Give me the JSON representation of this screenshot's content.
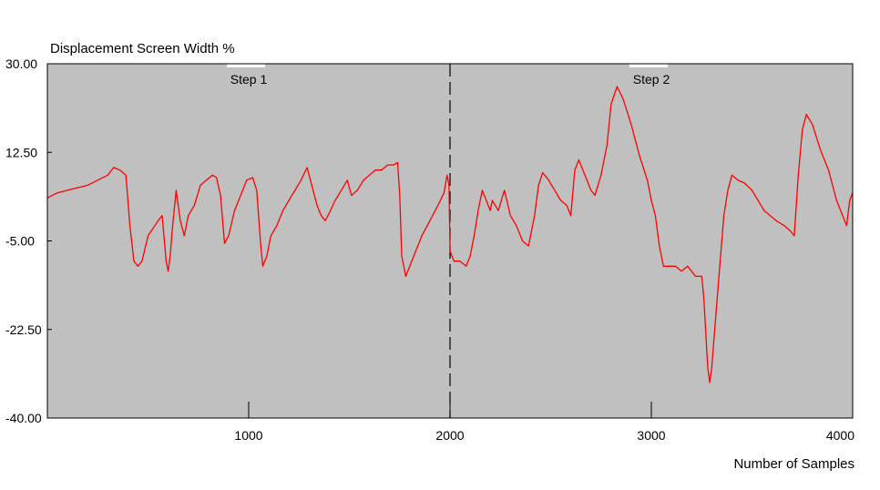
{
  "chart_data": {
    "type": "line",
    "ylabel": "Displacement Screen Width %",
    "xlabel": "Number of Samples",
    "xlim": [
      0,
      4000
    ],
    "ylim": [
      -40,
      30
    ],
    "x_ticks": [
      1000,
      2000,
      3000,
      4000
    ],
    "x_tick_labels": [
      "1000",
      "2000",
      "3000",
      "4000"
    ],
    "y_ticks": [
      30,
      12.5,
      -5,
      -22.5,
      -40
    ],
    "y_tick_labels": [
      "30.00",
      "12.50",
      "-5.00",
      "-22.50",
      "-40.00"
    ],
    "grid": false,
    "plot_background": "#c0c0c0",
    "line_color": "#ff0000",
    "annotations": [
      {
        "label": "Step 1",
        "x": 1000
      },
      {
        "label": "Step 2",
        "x": 3000
      }
    ],
    "divider_x": 2000,
    "series": [
      {
        "points": [
          [
            0,
            3.5
          ],
          [
            50,
            4.5
          ],
          [
            100,
            5
          ],
          [
            150,
            5.5
          ],
          [
            200,
            6
          ],
          [
            250,
            7
          ],
          [
            300,
            8
          ],
          [
            330,
            9.5
          ],
          [
            360,
            9
          ],
          [
            390,
            8
          ],
          [
            410,
            -2
          ],
          [
            430,
            -9
          ],
          [
            450,
            -10
          ],
          [
            470,
            -9
          ],
          [
            500,
            -4
          ],
          [
            550,
            -1
          ],
          [
            570,
            0
          ],
          [
            590,
            -9
          ],
          [
            600,
            -11
          ],
          [
            610,
            -8
          ],
          [
            620,
            -3
          ],
          [
            640,
            5
          ],
          [
            660,
            -1
          ],
          [
            680,
            -4
          ],
          [
            700,
            0
          ],
          [
            730,
            2
          ],
          [
            760,
            6
          ],
          [
            790,
            7
          ],
          [
            820,
            8
          ],
          [
            840,
            7.5
          ],
          [
            860,
            4
          ],
          [
            880,
            -5.5
          ],
          [
            900,
            -4
          ],
          [
            930,
            1
          ],
          [
            960,
            4
          ],
          [
            990,
            7
          ],
          [
            1020,
            7.5
          ],
          [
            1040,
            5
          ],
          [
            1060,
            -6
          ],
          [
            1070,
            -10
          ],
          [
            1090,
            -8
          ],
          [
            1110,
            -4
          ],
          [
            1140,
            -2
          ],
          [
            1170,
            1
          ],
          [
            1200,
            3
          ],
          [
            1230,
            5
          ],
          [
            1260,
            7
          ],
          [
            1290,
            9.5
          ],
          [
            1300,
            8
          ],
          [
            1320,
            5
          ],
          [
            1340,
            2
          ],
          [
            1360,
            0
          ],
          [
            1380,
            -1
          ],
          [
            1400,
            0.5
          ],
          [
            1430,
            3
          ],
          [
            1460,
            5
          ],
          [
            1490,
            7
          ],
          [
            1510,
            4
          ],
          [
            1540,
            5
          ],
          [
            1570,
            7
          ],
          [
            1600,
            8
          ],
          [
            1630,
            9
          ],
          [
            1660,
            9
          ],
          [
            1690,
            10
          ],
          [
            1720,
            10
          ],
          [
            1740,
            10.5
          ],
          [
            1750,
            4
          ],
          [
            1760,
            -8
          ],
          [
            1780,
            -12
          ],
          [
            1800,
            -10
          ],
          [
            1830,
            -7
          ],
          [
            1860,
            -4
          ],
          [
            1900,
            -1
          ],
          [
            1940,
            2
          ],
          [
            1970,
            4.5
          ],
          [
            1985,
            8
          ],
          [
            1995,
            6
          ],
          [
            2000,
            -7
          ],
          [
            2020,
            -9
          ],
          [
            2050,
            -9
          ],
          [
            2080,
            -10
          ],
          [
            2100,
            -8
          ],
          [
            2120,
            -4
          ],
          [
            2140,
            1
          ],
          [
            2160,
            5
          ],
          [
            2180,
            3
          ],
          [
            2200,
            1
          ],
          [
            2210,
            3
          ],
          [
            2240,
            1
          ],
          [
            2270,
            5
          ],
          [
            2300,
            0
          ],
          [
            2330,
            -2
          ],
          [
            2360,
            -5
          ],
          [
            2390,
            -6
          ],
          [
            2420,
            0
          ],
          [
            2440,
            6
          ],
          [
            2460,
            8.5
          ],
          [
            2490,
            7
          ],
          [
            2520,
            5
          ],
          [
            2550,
            3
          ],
          [
            2580,
            2
          ],
          [
            2600,
            0
          ],
          [
            2620,
            9
          ],
          [
            2640,
            11
          ],
          [
            2660,
            9
          ],
          [
            2680,
            7
          ],
          [
            2700,
            5
          ],
          [
            2720,
            4
          ],
          [
            2750,
            8
          ],
          [
            2780,
            14
          ],
          [
            2800,
            22
          ],
          [
            2830,
            25.5
          ],
          [
            2860,
            23
          ],
          [
            2900,
            18
          ],
          [
            2940,
            12
          ],
          [
            2980,
            7
          ],
          [
            3000,
            3
          ],
          [
            3020,
            0
          ],
          [
            3040,
            -6
          ],
          [
            3060,
            -10
          ],
          [
            3090,
            -10
          ],
          [
            3120,
            -10
          ],
          [
            3150,
            -11
          ],
          [
            3180,
            -10
          ],
          [
            3220,
            -12
          ],
          [
            3250,
            -12
          ],
          [
            3260,
            -16
          ],
          [
            3280,
            -30
          ],
          [
            3290,
            -33
          ],
          [
            3300,
            -30
          ],
          [
            3320,
            -20
          ],
          [
            3340,
            -10
          ],
          [
            3360,
            0
          ],
          [
            3380,
            5
          ],
          [
            3400,
            8
          ],
          [
            3430,
            7
          ],
          [
            3460,
            6.5
          ],
          [
            3500,
            5
          ],
          [
            3530,
            3
          ],
          [
            3560,
            1
          ],
          [
            3590,
            0
          ],
          [
            3620,
            -1
          ],
          [
            3660,
            -2
          ],
          [
            3690,
            -3
          ],
          [
            3710,
            -4
          ],
          [
            3730,
            8
          ],
          [
            3750,
            17
          ],
          [
            3770,
            20
          ],
          [
            3800,
            18
          ],
          [
            3840,
            13
          ],
          [
            3880,
            9
          ],
          [
            3920,
            3
          ],
          [
            3950,
            0
          ],
          [
            3970,
            -2
          ],
          [
            3985,
            3
          ],
          [
            4000,
            4.5
          ]
        ]
      }
    ]
  }
}
